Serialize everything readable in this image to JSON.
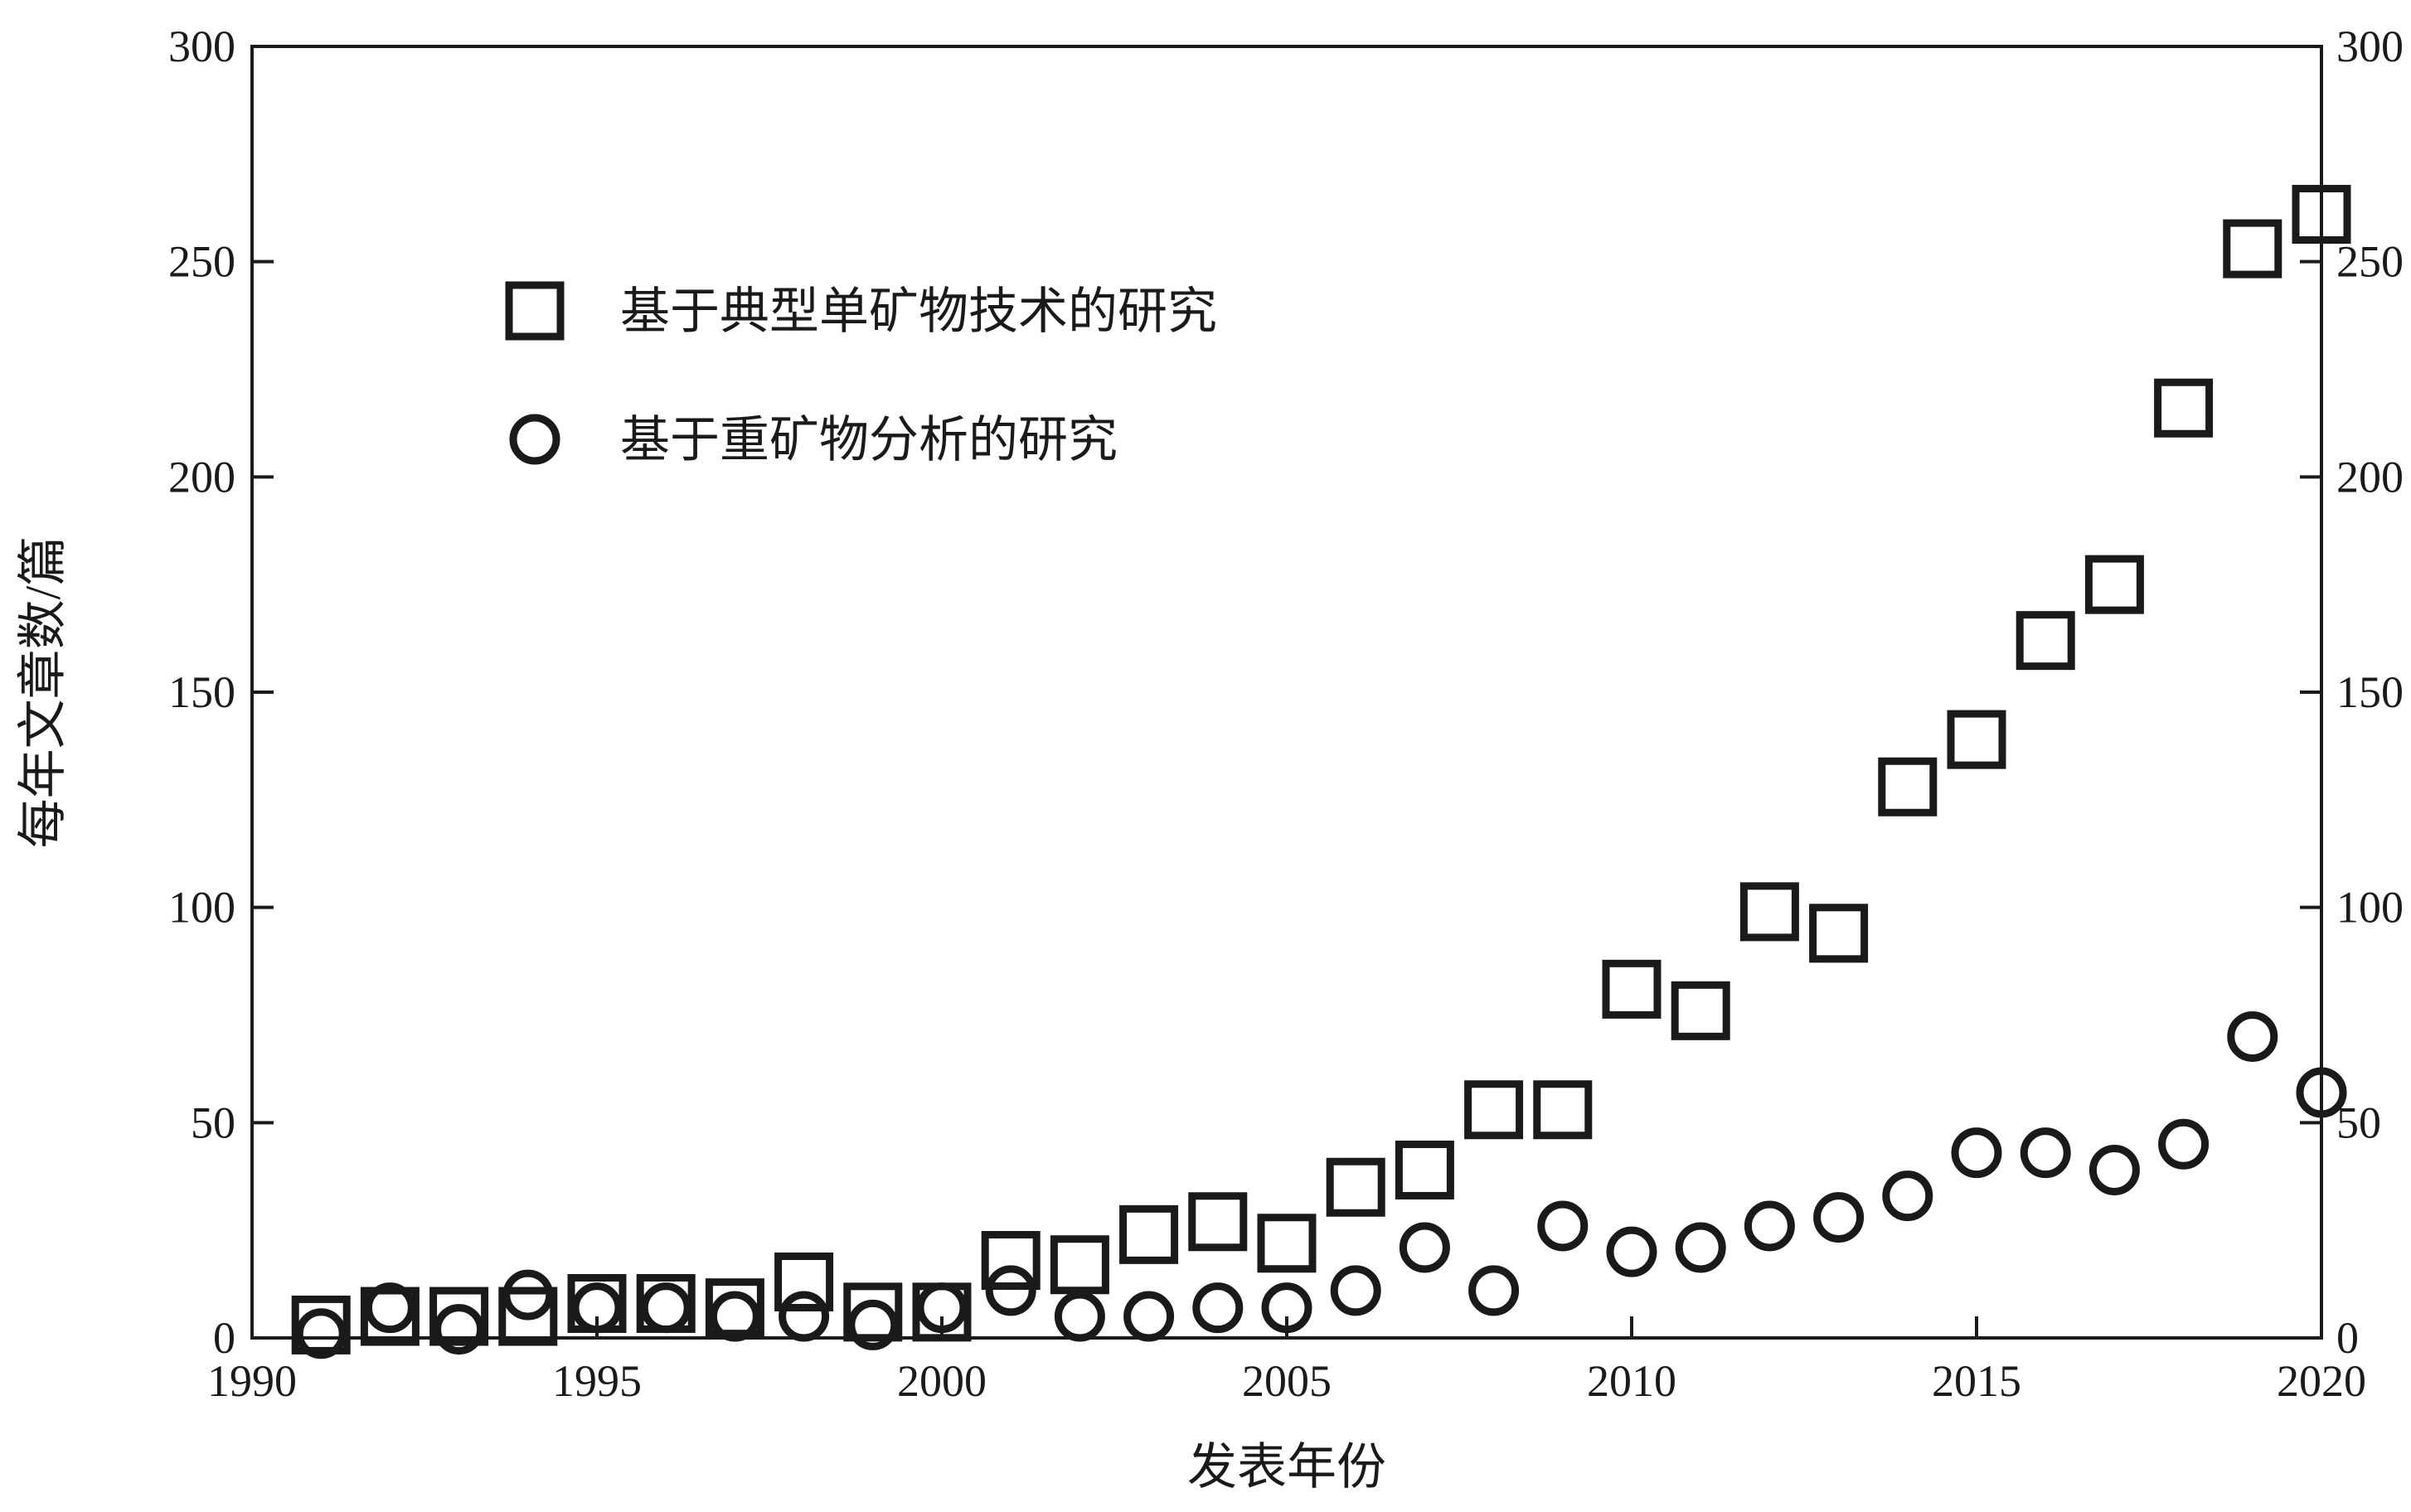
{
  "chart_data": {
    "type": "scatter",
    "xlabel": "发表年份",
    "ylabel": "每年文章数/篇",
    "xlim": [
      1990,
      2020
    ],
    "ylim": [
      0,
      300
    ],
    "x_ticks": [
      "1990",
      "1995",
      "2000",
      "2005",
      "2010",
      "2015",
      "2020"
    ],
    "y_ticks": [
      "0",
      "50",
      "100",
      "150",
      "200",
      "250",
      "300"
    ],
    "y_ticks_right": [
      "0",
      "50",
      "100",
      "150",
      "200",
      "250",
      "300"
    ],
    "grid": false,
    "legend_position": "top-left",
    "series": [
      {
        "name": "基于典型单矿物技术的研究",
        "marker": "square",
        "color": "#1a1a1a",
        "x": [
          1991,
          1992,
          1993,
          1994,
          1995,
          1996,
          1997,
          1998,
          1999,
          2000,
          2001,
          2002,
          2003,
          2004,
          2005,
          2006,
          2007,
          2008,
          2009,
          2010,
          2011,
          2012,
          2013,
          2014,
          2015,
          2016,
          2017,
          2018,
          2019,
          2020
        ],
        "y": [
          3,
          5,
          5,
          5,
          8,
          8,
          7,
          13,
          6,
          6,
          18,
          17,
          24,
          27,
          22,
          35,
          39,
          53,
          53,
          81,
          76,
          99,
          94,
          128,
          139,
          162,
          175,
          216,
          253,
          261
        ]
      },
      {
        "name": "基于重矿物分析的研究",
        "marker": "circle",
        "color": "#1a1a1a",
        "x": [
          1991,
          1992,
          1993,
          1994,
          1995,
          1996,
          1997,
          1998,
          1999,
          2000,
          2001,
          2002,
          2003,
          2004,
          2005,
          2006,
          2007,
          2008,
          2009,
          2010,
          2011,
          2012,
          2013,
          2014,
          2015,
          2016,
          2017,
          2018,
          2019,
          2020
        ],
        "y": [
          1,
          7,
          2,
          10,
          7,
          7,
          5,
          5,
          3,
          7,
          11,
          5,
          5,
          7,
          7,
          11,
          21,
          11,
          26,
          20,
          21,
          26,
          28,
          33,
          43,
          43,
          39,
          45,
          70,
          57
        ]
      }
    ]
  }
}
